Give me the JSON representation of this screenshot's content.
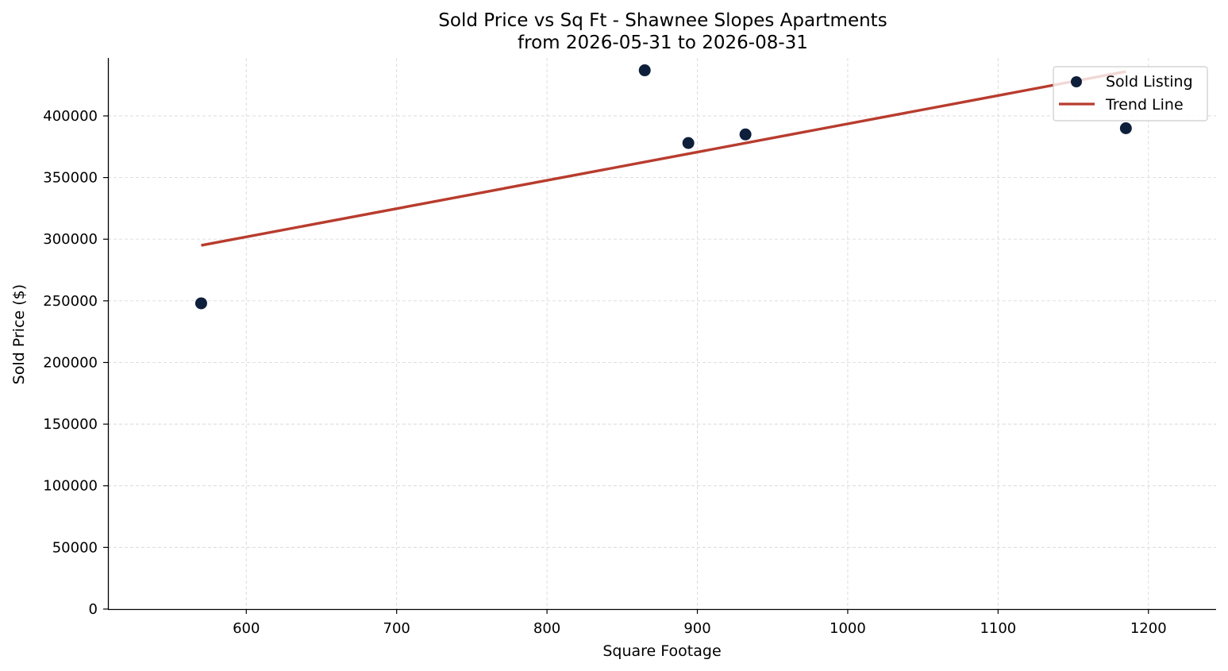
{
  "chart_data": {
    "type": "scatter",
    "title": "Sold Price vs Sq Ft - Shawnee Slopes Apartments",
    "subtitle": "from 2026-05-31 to 2026-08-31",
    "xlabel": "Square Footage",
    "ylabel": "Sold Price ($)",
    "xlim": [
      508,
      1245
    ],
    "ylim": [
      0,
      447000
    ],
    "x_ticks": [
      600,
      700,
      800,
      900,
      1000,
      1100,
      1200
    ],
    "x_tick_labels": [
      "600",
      "700",
      "800",
      "900",
      "1000",
      "1100",
      "1200"
    ],
    "y_ticks": [
      0,
      50000,
      100000,
      150000,
      200000,
      250000,
      300000,
      350000,
      400000
    ],
    "y_tick_labels": [
      "0",
      "50000",
      "100000",
      "150000",
      "200000",
      "250000",
      "300000",
      "350000",
      "400000"
    ],
    "grid": true,
    "legend_position": "top-right",
    "series": [
      {
        "name": "Sold Listing",
        "kind": "scatter",
        "color": "#0d1f3a",
        "points": [
          {
            "x": 570,
            "y": 248000
          },
          {
            "x": 865,
            "y": 437000
          },
          {
            "x": 894,
            "y": 378000
          },
          {
            "x": 932,
            "y": 385000
          },
          {
            "x": 1185,
            "y": 390000
          }
        ]
      },
      {
        "name": "Trend Line",
        "kind": "line",
        "color": "#b83c2e",
        "points": [
          {
            "x": 570,
            "y": 295000
          },
          {
            "x": 1185,
            "y": 436000
          }
        ]
      }
    ]
  }
}
